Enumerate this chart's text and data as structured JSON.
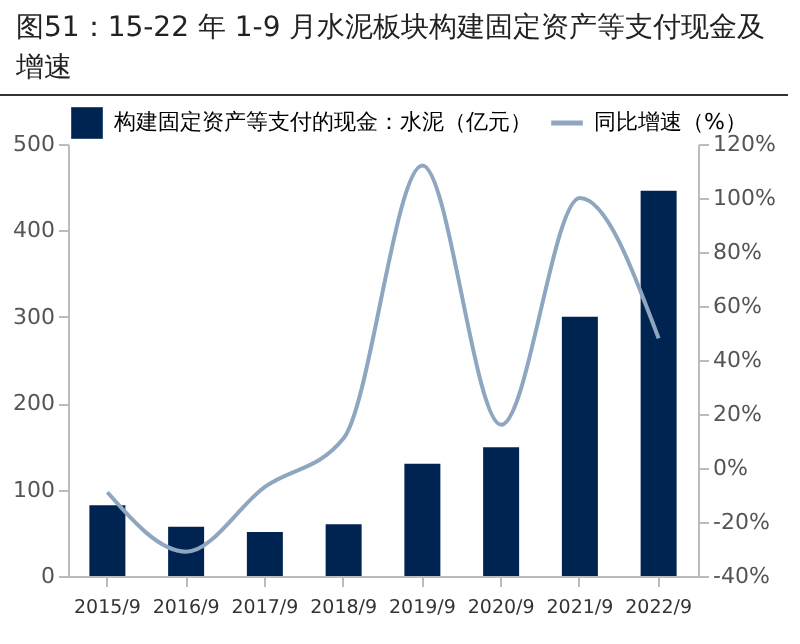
{
  "chart_data": {
    "type": "bar",
    "title": "图51：15-22 年 1-9 月水泥板块构建固定资产等支付现金及增速",
    "categories": [
      "2015/9",
      "2016/9",
      "2017/9",
      "2018/9",
      "2019/9",
      "2020/9",
      "2021/9",
      "2022/9"
    ],
    "series": [
      {
        "name": "构建固定资产等支付的现金：水泥（亿元）",
        "color": "#002452",
        "values": [
          82,
          57,
          51,
          60,
          130,
          149,
          300,
          446
        ]
      },
      {
        "name": "同比增速（%）",
        "type": "line",
        "axis": "y2",
        "color": "#8ea6c0",
        "values": [
          -9,
          -31,
          -7,
          11,
          112,
          16,
          100,
          48
        ]
      }
    ],
    "ylim": [
      0,
      500
    ],
    "yticks": [
      0,
      100,
      200,
      300,
      400,
      500
    ],
    "y2lim": [
      -40,
      120
    ],
    "y2ticks": [
      {
        "value": -40,
        "label": "-40%"
      },
      {
        "value": -20,
        "label": "-20%"
      },
      {
        "value": 0,
        "label": "0%"
      },
      {
        "value": 20,
        "label": "20%"
      },
      {
        "value": 40,
        "label": "40%"
      },
      {
        "value": 60,
        "label": "60%"
      },
      {
        "value": 80,
        "label": "80%"
      },
      {
        "value": 100,
        "label": "100%"
      },
      {
        "value": 120,
        "label": "120%"
      }
    ],
    "legend": "top",
    "grid": false
  }
}
